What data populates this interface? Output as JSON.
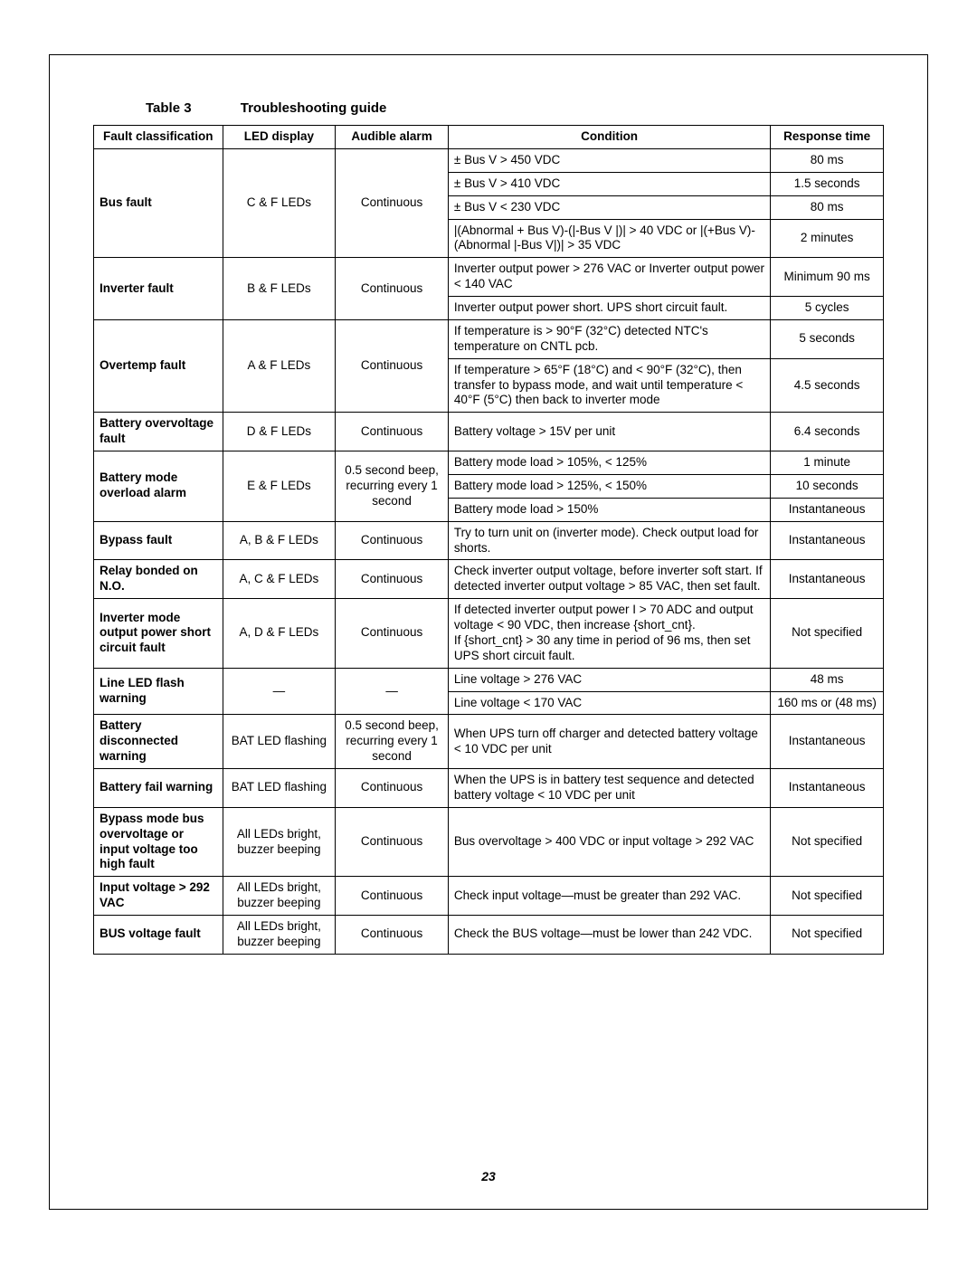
{
  "title_label": "Table 3",
  "title_text": "Troubleshooting guide",
  "page_number": "23",
  "headers": {
    "fault": "Fault classification",
    "led": "LED display",
    "alarm": "Audible alarm",
    "condition": "Condition",
    "response": "Response time"
  },
  "rows": {
    "bus": {
      "fault": "Bus fault",
      "led": "C & F LEDs",
      "alarm": "Continuous",
      "c0": "± Bus V > 450 VDC",
      "r0": "80 ms",
      "c1": "± Bus V > 410 VDC",
      "r1": "1.5 seconds",
      "c2": "± Bus V < 230 VDC",
      "r2": "80 ms",
      "c3": "|(Abnormal + Bus V)-(|-Bus V |)| > 40 VDC or |(+Bus V)-(Abnormal |-Bus V|)| > 35 VDC",
      "r3": "2 minutes"
    },
    "inv": {
      "fault": "Inverter fault",
      "led": "B & F LEDs",
      "alarm": "Continuous",
      "c0": "Inverter output power > 276 VAC or Inverter output power < 140 VAC",
      "r0": "Minimum 90 ms",
      "c1": "Inverter output power short. UPS short circuit fault.",
      "r1": "5 cycles"
    },
    "ot": {
      "fault": "Overtemp fault",
      "led": "A & F LEDs",
      "alarm": "Continuous",
      "c0": "If temperature is > 90°F (32°C) detected NTC's temperature on CNTL pcb.",
      "r0": "5 seconds",
      "c1": "If temperature > 65°F (18°C) and < 90°F (32°C), then transfer to bypass mode, and wait until temperature < 40°F (5°C) then back to inverter mode",
      "r1": "4.5 seconds"
    },
    "bov": {
      "fault": "Battery overvoltage fault",
      "led": "D & F LEDs",
      "alarm": "Continuous",
      "c0": "Battery voltage > 15V per unit",
      "r0": "6.4 seconds"
    },
    "bola": {
      "fault": "Battery mode overload alarm",
      "led": "E & F LEDs",
      "alarm": "0.5 second beep, recurring every 1 second",
      "c0": "Battery mode load > 105%, < 125%",
      "r0": "1 minute",
      "c1": "Battery mode load > 125%, < 150%",
      "r1": "10 seconds",
      "c2": "Battery mode load > 150%",
      "r2": "Instantaneous"
    },
    "byp": {
      "fault": "Bypass fault",
      "led": "A, B & F LEDs",
      "alarm": "Continuous",
      "c0": "Try to turn unit on (inverter mode). Check output load for shorts.",
      "r0": "Instantaneous"
    },
    "relay": {
      "fault": "Relay bonded on N.O.",
      "led": "A, C & F LEDs",
      "alarm": "Continuous",
      "c0": "Check inverter output voltage, before inverter soft start. If detected inverter output voltage > 85 VAC, then set fault.",
      "r0": "Instantaneous"
    },
    "isc": {
      "fault": "Inverter mode output power short circuit fault",
      "led": "A, D & F LEDs",
      "alarm": "Continuous",
      "c0": "If detected inverter output power I > 70 ADC and output voltage < 90 VDC, then increase {short_cnt}.\nIf {short_cnt} > 30 any time in period of 96 ms, then set UPS short circuit fault.",
      "r0": "Not specified"
    },
    "lled": {
      "fault": "Line LED flash warning",
      "led": "—",
      "alarm": "—",
      "c0": "Line voltage > 276 VAC",
      "r0": "48 ms",
      "c1": "Line voltage < 170 VAC",
      "r1": "160 ms or (48 ms)"
    },
    "bdisc": {
      "fault": "Battery disconnected warning",
      "led": "BAT LED flashing",
      "alarm": "0.5 second beep, recurring every 1 second",
      "c0": "When UPS turn off charger and detected battery voltage < 10 VDC per unit",
      "r0": "Instantaneous"
    },
    "bfail": {
      "fault": "Battery fail warning",
      "led": "BAT LED flashing",
      "alarm": "Continuous",
      "c0": "When the UPS is in battery test sequence and detected battery voltage < 10 VDC per unit",
      "r0": "Instantaneous"
    },
    "bypov": {
      "fault": "Bypass mode bus overvoltage or input voltage too high fault",
      "led": "All LEDs bright, buzzer beeping",
      "alarm": "Continuous",
      "c0": "Bus overvoltage > 400 VDC or input voltage > 292 VAC",
      "r0": "Not specified"
    },
    "inv292": {
      "fault": "Input voltage > 292 VAC",
      "led": "All LEDs bright, buzzer beeping",
      "alarm": "Continuous",
      "c0": "Check input voltage—must be greater than 292 VAC.",
      "r0": "Not specified"
    },
    "busv": {
      "fault": "BUS voltage fault",
      "led": "All LEDs bright, buzzer beeping",
      "alarm": "Continuous",
      "c0": "Check the BUS voltage—must be lower than 242 VDC.",
      "r0": "Not specified"
    }
  }
}
